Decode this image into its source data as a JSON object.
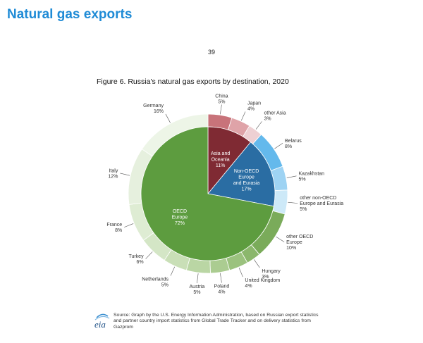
{
  "page": {
    "heading": "Natural gas exports",
    "page_number": "39",
    "source_text": "Source: Graph by the U.S. Energy Information Administration, based on Russian export statistics and partner country import statistics from Global Trade Tracker and on delivery statistics from Gazprom",
    "logo_text": "eia"
  },
  "chart_data": {
    "type": "pie",
    "title": "Figure 6. Russia's natural gas exports by destination, 2020",
    "inner": [
      {
        "label": "Asia and Oceania",
        "pct": "11%",
        "value": 11,
        "color": "#7f2a33"
      },
      {
        "label": "Non-OECD Europe and Eurasia",
        "pct": "17%",
        "value": 17,
        "color": "#2a6da3"
      },
      {
        "label": "OECD Europe",
        "pct": "72%",
        "value": 72,
        "color": "#5d9c3f"
      }
    ],
    "outer": [
      {
        "label": "China",
        "pct": "5%",
        "value": 5,
        "color": "#c8737a"
      },
      {
        "label": "Japan",
        "pct": "4%",
        "value": 4,
        "color": "#dfa3a8"
      },
      {
        "label": "other Asia",
        "pct": "3%",
        "value": 3,
        "color": "#eed0d3"
      },
      {
        "label": "Belarus",
        "pct": "8%",
        "value": 8,
        "color": "#64b9ec"
      },
      {
        "label": "Kazakhstan",
        "pct": "5%",
        "value": 5,
        "color": "#9ed3f3"
      },
      {
        "label": "other non-OECD Europe and Eurasia",
        "pct": "5%",
        "value": 5,
        "color": "#cde9f8"
      },
      {
        "label": "other OECD Europe",
        "pct": "10%",
        "value": 10,
        "color": "#7aab5a"
      },
      {
        "label": "Hungary",
        "pct": "3%",
        "value": 3,
        "color": "#8bb76c"
      },
      {
        "label": "United Kingdom",
        "pct": "4%",
        "value": 4,
        "color": "#9bc27e"
      },
      {
        "label": "Poland",
        "pct": "4%",
        "value": 4,
        "color": "#abcc91"
      },
      {
        "label": "Austria",
        "pct": "5%",
        "value": 5,
        "color": "#bad6a4"
      },
      {
        "label": "Netherlands",
        "pct": "5%",
        "value": 5,
        "color": "#c9dfb7"
      },
      {
        "label": "Turkey",
        "pct": "6%",
        "value": 6,
        "color": "#d4e6c6"
      },
      {
        "label": "France",
        "pct": "8%",
        "value": 8,
        "color": "#deecd3"
      },
      {
        "label": "Italy",
        "pct": "12%",
        "value": 12,
        "color": "#e6f0de"
      },
      {
        "label": "Germany",
        "pct": "16%",
        "value": 16,
        "color": "#edf5e7"
      }
    ]
  }
}
